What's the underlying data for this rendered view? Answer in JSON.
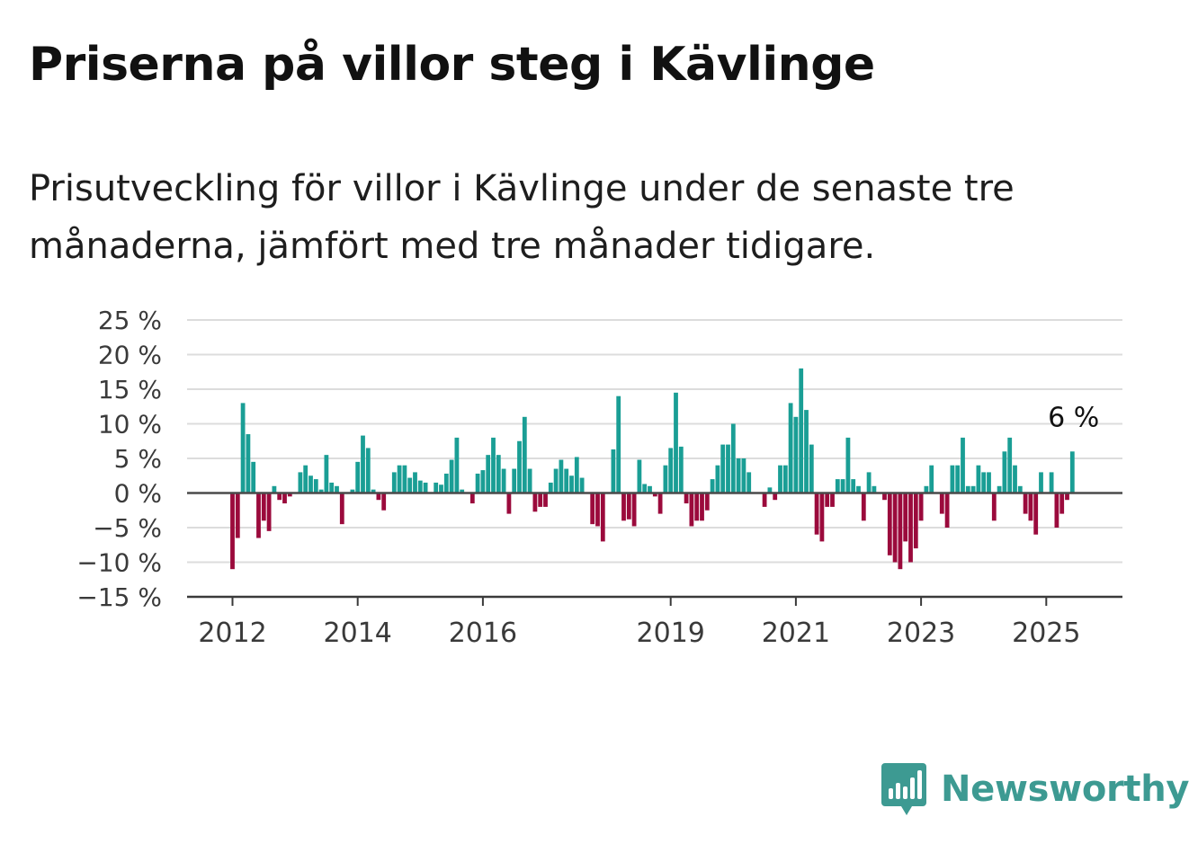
{
  "title": "Priserna på villor steg i Kävlinge",
  "subtitle": "Prisutveckling för villor i Kävlinge under de senaste tre månaderna, jämfört med tre månader tidigare.",
  "brand": "Newsworthy",
  "colors": {
    "positive": "#1a9e95",
    "negative": "#9b0a3c",
    "grid": "#dcdcdc",
    "axis": "#444444",
    "brand": "#3d9a92"
  },
  "chart_data": {
    "type": "bar",
    "ylim": [
      -15,
      25
    ],
    "yticks": [
      25,
      20,
      15,
      10,
      5,
      0,
      -5,
      -10,
      -15
    ],
    "ytick_labels": [
      "25 %",
      "20 %",
      "15 %",
      "10 %",
      "5 %",
      "0 %",
      "−5 %",
      "−10 %",
      "−15 %"
    ],
    "xticks": [
      {
        "label": "2012",
        "index": 0
      },
      {
        "label": "2014",
        "index": 24
      },
      {
        "label": "2016",
        "index": 48
      },
      {
        "label": "2019",
        "index": 84
      },
      {
        "label": "2021",
        "index": 108
      },
      {
        "label": "2023",
        "index": 132
      },
      {
        "label": "2025",
        "index": 156
      }
    ],
    "start": "2012-01",
    "frequency": "monthly",
    "grid": true,
    "last_label": "6 %",
    "values": [
      -11,
      -6.5,
      13,
      8.5,
      4.5,
      -6.5,
      -4,
      -5.5,
      1,
      -1,
      -1.5,
      -0.5,
      0,
      3,
      4,
      2.5,
      2,
      0.5,
      5.5,
      1.5,
      1,
      -4.5,
      0,
      0.5,
      4.5,
      8.3,
      6.5,
      0.5,
      -1,
      -2.5,
      0,
      3,
      4,
      4,
      2.2,
      3,
      1.8,
      1.5,
      0,
      1.5,
      1.2,
      2.8,
      4.8,
      8,
      0.5,
      0,
      -1.5,
      2.8,
      3.3,
      5.5,
      8,
      5.5,
      3.5,
      -3,
      3.5,
      7.5,
      11,
      3.5,
      -2.7,
      -2,
      -2,
      1.5,
      3.5,
      4.8,
      3.5,
      2.5,
      5.2,
      2.2,
      0,
      -4.5,
      -4.8,
      -7,
      0,
      6.3,
      14,
      -4,
      -3.8,
      -4.8,
      4.8,
      1.3,
      1,
      -0.5,
      -3,
      4,
      6.5,
      14.5,
      6.7,
      -1.5,
      -4.8,
      -4,
      -4,
      -2.5,
      2,
      4,
      7,
      7,
      10,
      5,
      5,
      3,
      0,
      0,
      -2,
      0.8,
      -1,
      4,
      4,
      13,
      11,
      18,
      12,
      7,
      -6,
      -7,
      -2,
      -2,
      2,
      2,
      8,
      2,
      1,
      -4,
      3,
      1,
      0,
      -1,
      -9,
      -10,
      -11,
      -7,
      -10,
      -8,
      -4,
      1,
      4,
      0,
      -3,
      -5,
      4,
      4,
      8,
      1,
      1,
      4,
      3,
      3,
      -4,
      1,
      6,
      8,
      4,
      1,
      -3,
      -4,
      -6,
      3,
      0,
      3,
      -5,
      -3,
      -1,
      6
    ]
  }
}
